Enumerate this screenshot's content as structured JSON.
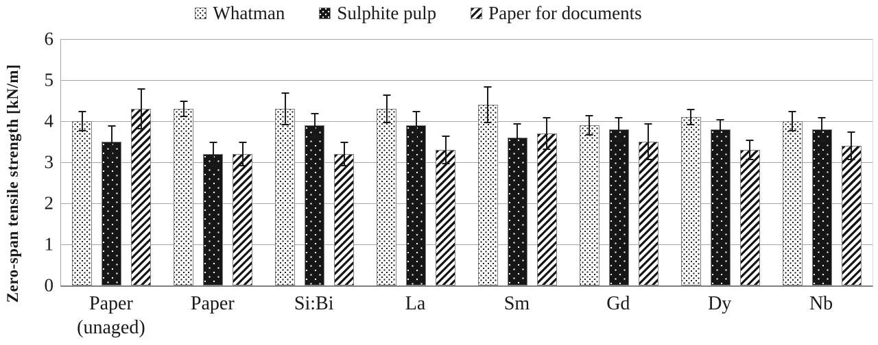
{
  "figure": {
    "y_axis_title": "Zero-span tensile strength [kN/m]"
  },
  "colors": {
    "ink": "#1a1a1a",
    "bar_fill_dark": "#161616",
    "bar_outline": "#808080",
    "gridline": "#a6a6a6",
    "axis": "#808080",
    "background": "#ffffff"
  },
  "chart_data": {
    "type": "bar",
    "title": "",
    "xlabel": "",
    "ylabel": "Zero-span tensile strength [kN/m]",
    "ylim": [
      0,
      6
    ],
    "yticks": [
      0,
      1,
      2,
      3,
      4,
      5,
      6
    ],
    "grid": true,
    "legend_position": "top",
    "error_bars": true,
    "categories": [
      "Paper (unaged)",
      "Paper",
      "Si:Bi",
      "La",
      "Sm",
      "Gd",
      "Dy",
      "Nb"
    ],
    "series": [
      {
        "name": "Whatman",
        "pattern": "dots-light",
        "values": [
          4.0,
          4.3,
          4.3,
          4.3,
          4.4,
          3.9,
          4.1,
          4.0
        ],
        "errors": [
          0.25,
          0.2,
          0.4,
          0.35,
          0.45,
          0.25,
          0.2,
          0.25
        ]
      },
      {
        "name": "Sulphite pulp",
        "pattern": "dots-dark",
        "values": [
          3.5,
          3.2,
          3.9,
          3.9,
          3.6,
          3.8,
          3.8,
          3.8
        ],
        "errors": [
          0.4,
          0.3,
          0.3,
          0.35,
          0.35,
          0.3,
          0.25,
          0.3
        ]
      },
      {
        "name": "Paper for documents",
        "pattern": "diagonal-hatch",
        "values": [
          4.3,
          3.2,
          3.2,
          3.3,
          3.7,
          3.5,
          3.3,
          3.4
        ],
        "errors": [
          0.5,
          0.3,
          0.3,
          0.35,
          0.4,
          0.45,
          0.25,
          0.35
        ]
      }
    ]
  }
}
